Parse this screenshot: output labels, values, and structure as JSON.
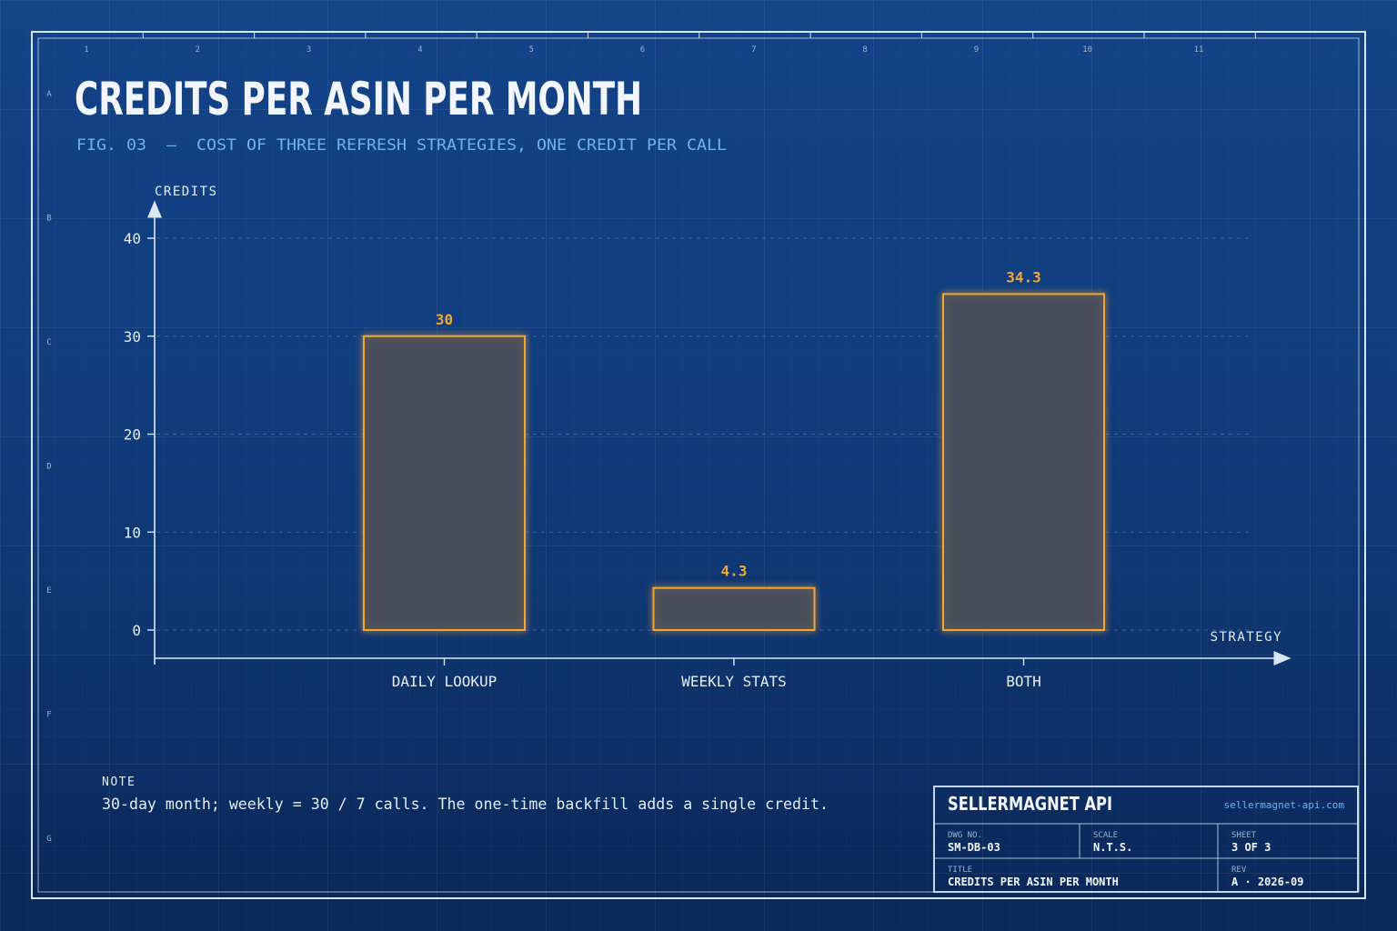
{
  "header": {
    "title": "CREDITS PER ASIN PER MONTH",
    "subtitle": "FIG. 03  —  COST OF THREE REFRESH STRATEGIES, ONE CREDIT PER CALL"
  },
  "frame": {
    "column_labels": [
      "1",
      "2",
      "3",
      "4",
      "5",
      "6",
      "7",
      "8",
      "9",
      "10",
      "11"
    ],
    "row_labels": [
      "A",
      "B",
      "C",
      "D",
      "E",
      "F",
      "G"
    ]
  },
  "chart_data": {
    "type": "bar",
    "categories": [
      "DAILY LOOKUP",
      "WEEKLY STATS",
      "BOTH"
    ],
    "values": [
      30,
      4.3,
      34.3
    ],
    "value_labels": [
      "30",
      "4.3",
      "34.3"
    ],
    "ylabel": "CREDITS",
    "xlabel": "STRATEGY",
    "ylim": [
      0,
      40
    ],
    "yticks": [
      0,
      10,
      20,
      30,
      40
    ],
    "grid": true,
    "bar_color": "#f0a830"
  },
  "note": {
    "label": "NOTE",
    "text": "30-day month; weekly = 30 / 7 calls. The one-time backfill adds a single credit."
  },
  "title_block": {
    "company": "SELLERMAGNET API",
    "url": "sellermagnet-api.com",
    "dwg_no_label": "DWG NO.",
    "dwg_no": "SM-DB-03",
    "scale_label": "SCALE",
    "scale": "N.T.S.",
    "sheet_label": "SHEET",
    "sheet": "3 OF 3",
    "title_label": "TITLE",
    "title": "CREDITS PER ASIN PER MONTH",
    "rev_label": "REV",
    "rev": "A · 2026-09"
  },
  "colors": {
    "accent": "#f0a830",
    "subtitle": "#6db3f2",
    "line": "#dbe6f5"
  }
}
